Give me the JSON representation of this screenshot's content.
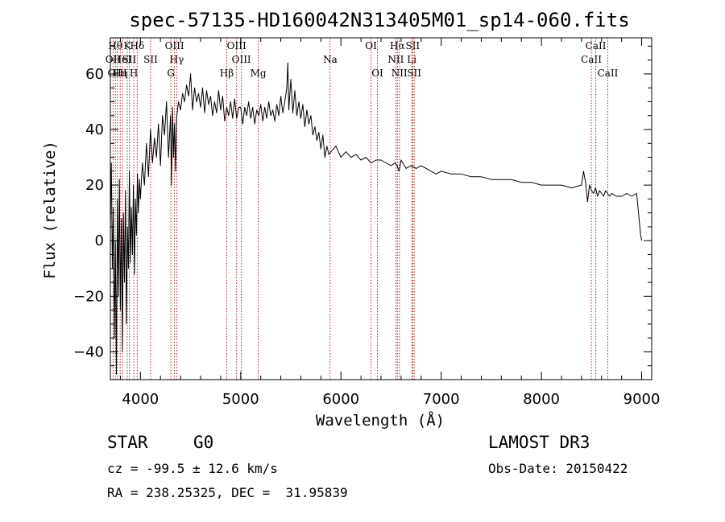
{
  "chart_data": {
    "type": "line",
    "title": "spec-57135-HD160042N313405M01_sp14-060.fits",
    "xlabel": "Wavelength (Å)",
    "ylabel": "Flux (relative)",
    "xlim": [
      3700,
      9100
    ],
    "ylim": [
      -50,
      73
    ],
    "xticks": [
      4000,
      5000,
      6000,
      7000,
      8000,
      9000
    ],
    "yticks": [
      -40,
      -20,
      0,
      20,
      40,
      60
    ],
    "series": [
      {
        "name": "spectrum",
        "x": [
          3700,
          3710,
          3720,
          3730,
          3740,
          3750,
          3760,
          3770,
          3780,
          3790,
          3800,
          3810,
          3820,
          3830,
          3840,
          3850,
          3860,
          3870,
          3880,
          3890,
          3900,
          3910,
          3920,
          3930,
          3940,
          3950,
          3960,
          3970,
          3980,
          3990,
          4000,
          4020,
          4040,
          4060,
          4080,
          4100,
          4120,
          4140,
          4160,
          4180,
          4200,
          4220,
          4240,
          4260,
          4280,
          4300,
          4310,
          4320,
          4330,
          4340,
          4350,
          4360,
          4380,
          4400,
          4420,
          4440,
          4460,
          4480,
          4500,
          4520,
          4540,
          4560,
          4580,
          4600,
          4620,
          4640,
          4660,
          4680,
          4700,
          4720,
          4740,
          4760,
          4780,
          4800,
          4820,
          4840,
          4860,
          4880,
          4900,
          4920,
          4940,
          4960,
          4980,
          5000,
          5020,
          5040,
          5060,
          5080,
          5100,
          5120,
          5140,
          5160,
          5180,
          5200,
          5220,
          5240,
          5260,
          5280,
          5300,
          5320,
          5340,
          5360,
          5380,
          5400,
          5420,
          5440,
          5460,
          5470,
          5480,
          5500,
          5520,
          5540,
          5560,
          5580,
          5600,
          5620,
          5640,
          5660,
          5680,
          5700,
          5720,
          5740,
          5760,
          5780,
          5800,
          5820,
          5840,
          5860,
          5880,
          5900,
          5950,
          6000,
          6050,
          6100,
          6150,
          6200,
          6250,
          6300,
          6350,
          6400,
          6450,
          6500,
          6540,
          6560,
          6580,
          6600,
          6650,
          6700,
          6750,
          6800,
          6850,
          6900,
          6950,
          7000,
          7100,
          7200,
          7300,
          7400,
          7500,
          7600,
          7700,
          7800,
          7900,
          8000,
          8100,
          8200,
          8300,
          8400,
          8420,
          8440,
          8460,
          8480,
          8500,
          8520,
          8540,
          8560,
          8580,
          8600,
          8620,
          8640,
          8660,
          8680,
          8700,
          8750,
          8800,
          8850,
          8900,
          8950,
          8990,
          9000
        ],
        "y": [
          5,
          28,
          -10,
          12,
          -35,
          0,
          -48,
          15,
          -20,
          22,
          -25,
          8,
          -40,
          10,
          -15,
          18,
          -30,
          5,
          -10,
          25,
          -8,
          12,
          -5,
          20,
          -12,
          15,
          2,
          24,
          10,
          22,
          15,
          28,
          20,
          35,
          23,
          40,
          28,
          37,
          30,
          42,
          27,
          45,
          38,
          50,
          30,
          45,
          20,
          48,
          30,
          42,
          25,
          44,
          50,
          47,
          53,
          50,
          56,
          52,
          60,
          47,
          55,
          50,
          53,
          48,
          55,
          46,
          54,
          49,
          52,
          45,
          50,
          46,
          54,
          47,
          52,
          43,
          48,
          45,
          50,
          44,
          51,
          44,
          48,
          48,
          42,
          48,
          45,
          50,
          44,
          48,
          42,
          47,
          45,
          49,
          43,
          48,
          44,
          50,
          45,
          47,
          43,
          49,
          45,
          52,
          46,
          50,
          55,
          64,
          47,
          58,
          46,
          54,
          45,
          50,
          44,
          49,
          41,
          47,
          42,
          45,
          38,
          41,
          36,
          39,
          33,
          38,
          30,
          34,
          31,
          32,
          34,
          30,
          32,
          30,
          31,
          29,
          30,
          28,
          29,
          29,
          28,
          27,
          28,
          27,
          25,
          29,
          26,
          27,
          26,
          27,
          26,
          25,
          24,
          25,
          24,
          24,
          23,
          23,
          22,
          22,
          22,
          21,
          21,
          20,
          20,
          20,
          19,
          20,
          25,
          21,
          14,
          20,
          18,
          17,
          19,
          16,
          18,
          17,
          16,
          18,
          17,
          16,
          17,
          16,
          16,
          17,
          16,
          17,
          2,
          0
        ]
      }
    ],
    "line_markers": [
      {
        "wavelength": 3727,
        "label": "OII",
        "row": 2
      },
      {
        "wavelength": 3750,
        "label": "Hθ",
        "row": 1
      },
      {
        "wavelength": 3770,
        "label": "OIII",
        "row": 3
      },
      {
        "wavelength": 3798,
        "label": "Hη",
        "row": 3
      },
      {
        "wavelength": 3820,
        "label": "HeI",
        "row": 2
      },
      {
        "wavelength": 3869,
        "label": "K",
        "row": 1
      },
      {
        "wavelength": 3889,
        "label": "SII",
        "row": 2
      },
      {
        "wavelength": 3934,
        "label": "H",
        "row": 3
      },
      {
        "wavelength": 3968,
        "label": "Hδ",
        "row": 1
      },
      {
        "wavelength": 4102,
        "label": "SII",
        "row": 2
      },
      {
        "wavelength": 4304,
        "label": "G",
        "row": 3
      },
      {
        "wavelength": 4340,
        "label": "OIII",
        "row": 1
      },
      {
        "wavelength": 4363,
        "label": "Hγ",
        "row": 2
      },
      {
        "wavelength": 4861,
        "label": "Hβ",
        "row": 3
      },
      {
        "wavelength": 4959,
        "label": "OIII",
        "row": 1
      },
      {
        "wavelength": 5007,
        "label": "OIII",
        "row": 2
      },
      {
        "wavelength": 5175,
        "label": "Mg",
        "row": 3
      },
      {
        "wavelength": 5893,
        "label": "Na",
        "row": 2
      },
      {
        "wavelength": 6300,
        "label": "OI",
        "row": 1
      },
      {
        "wavelength": 6364,
        "label": "OI",
        "row": 3
      },
      {
        "wavelength": 6548,
        "label": "NII",
        "row": 2
      },
      {
        "wavelength": 6563,
        "label": "Hα",
        "row": 1
      },
      {
        "wavelength": 6583,
        "label": "NII",
        "row": 3
      },
      {
        "wavelength": 6707,
        "label": "Li",
        "row": 2
      },
      {
        "wavelength": 6716,
        "label": "SII",
        "row": 1
      },
      {
        "wavelength": 6731,
        "label": "SII",
        "row": 3
      },
      {
        "wavelength": 8498,
        "label": "CaII",
        "row": 2
      },
      {
        "wavelength": 8542,
        "label": "CaII",
        "row": 1
      },
      {
        "wavelength": 8662,
        "label": "CaII",
        "row": 3
      }
    ]
  },
  "info": {
    "object_type": "STAR",
    "subclass": "G0",
    "survey": "LAMOST DR3",
    "cz": "cz = -99.5 ± 12.6 km/s",
    "obs_date": "Obs-Date: 20150422",
    "coords": "RA = 238.25325, DEC =  31.95839"
  }
}
